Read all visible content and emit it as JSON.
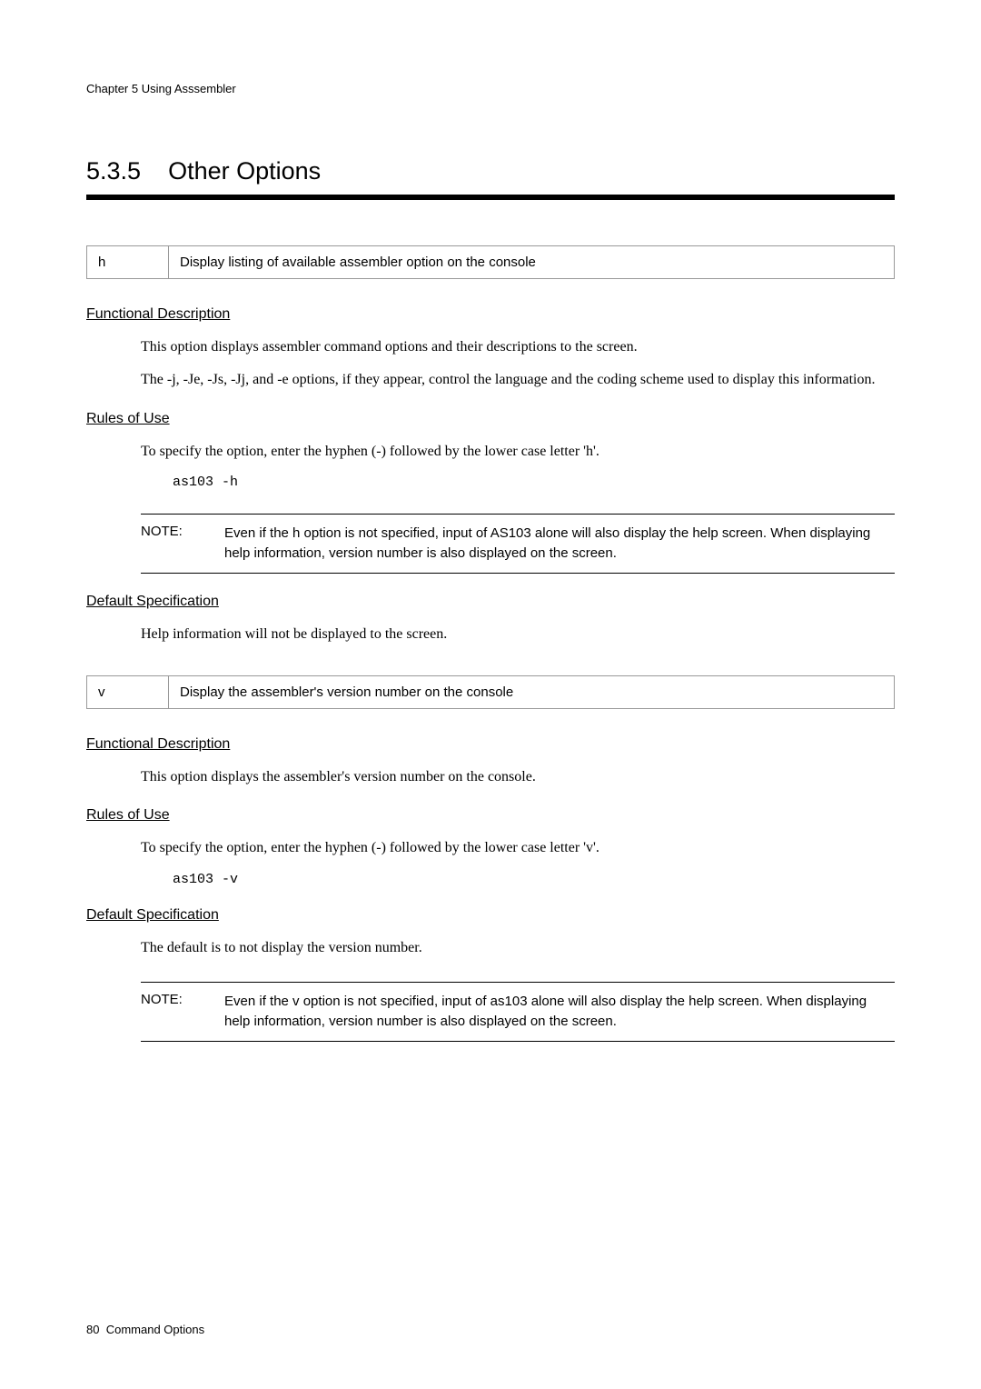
{
  "chapter_header": "Chapter  5   Using Asssembler",
  "section_number": "5.3.5",
  "section_title": "Other Options",
  "option_h": {
    "flag": "h",
    "desc": "Display listing of available assembler option on the console"
  },
  "h_functional_desc_heading": "Functional Description",
  "h_functional_desc_p1": "This option displays assembler command options and their descriptions to the screen.",
  "h_functional_desc_p2": "The -j, -Je, -Js, -Jj, and -e options, if they appear, control the language and the coding scheme used to display this information.",
  "h_rules_heading": "Rules of Use",
  "h_rules_p1": "To specify the option, enter the hyphen (-) followed by the lower case letter 'h'.",
  "h_code": "as103 -h",
  "note_label": "NOTE:",
  "h_note_text": "Even if the h option is not specified, input of AS103 alone will also display the help screen. When displaying help information, version number is also displayed on the screen.",
  "h_default_heading": "Default Specification",
  "h_default_p1": "Help information will not be displayed to the screen.",
  "option_v": {
    "flag": "v",
    "desc": "Display the assembler's version number on the console"
  },
  "v_functional_desc_heading": "Functional Description",
  "v_functional_desc_p1": "This option displays the assembler's version number on the console.",
  "v_rules_heading": "Rules of Use",
  "v_rules_p1": "To specify the option, enter the hyphen (-) followed by the lower case letter 'v'.",
  "v_code": "as103 -v",
  "v_default_heading": "Default Specification",
  "v_default_p1": "The default is to not display the version number.",
  "v_note_text": "Even if the v option is not specified, input of as103 alone will also display the help screen. When displaying help information, version number is also displayed on the screen.",
  "footer_page": "80",
  "footer_label": "Command Options"
}
